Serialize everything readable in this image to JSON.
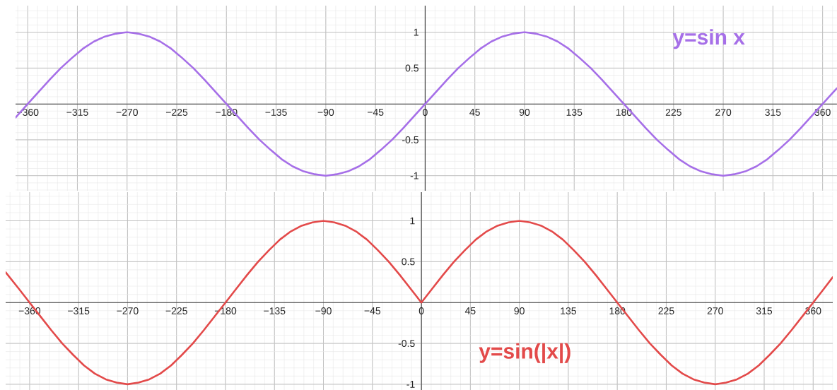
{
  "chart_data": [
    {
      "type": "line",
      "series": [
        {
          "name": "y=sin x",
          "color": "#a66fe8",
          "x": [
            -371,
            -360,
            -350,
            -340,
            -330,
            -320,
            -310,
            -300,
            -290,
            -280,
            -270,
            -260,
            -250,
            -240,
            -230,
            -220,
            -210,
            -200,
            -190,
            -180,
            -170,
            -160,
            -150,
            -140,
            -130,
            -120,
            -110,
            -100,
            -90,
            -80,
            -70,
            -60,
            -50,
            -40,
            -30,
            -20,
            -10,
            0,
            10,
            20,
            30,
            40,
            50,
            60,
            70,
            80,
            90,
            100,
            110,
            120,
            130,
            140,
            150,
            160,
            170,
            180,
            190,
            200,
            210,
            220,
            230,
            240,
            250,
            260,
            270,
            280,
            290,
            300,
            310,
            320,
            330,
            340,
            350,
            360,
            370,
            373
          ],
          "values": [
            -0.19,
            0,
            0.17,
            0.34,
            0.5,
            0.64,
            0.77,
            0.87,
            0.94,
            0.98,
            1,
            0.98,
            0.94,
            0.87,
            0.77,
            0.64,
            0.5,
            0.34,
            0.17,
            0,
            -0.17,
            -0.34,
            -0.5,
            -0.64,
            -0.77,
            -0.87,
            -0.94,
            -0.98,
            -1,
            -0.98,
            -0.94,
            -0.87,
            -0.77,
            -0.64,
            -0.5,
            -0.34,
            -0.17,
            0,
            0.17,
            0.34,
            0.5,
            0.64,
            0.77,
            0.87,
            0.94,
            0.98,
            1,
            0.98,
            0.94,
            0.87,
            0.77,
            0.64,
            0.5,
            0.34,
            0.17,
            0,
            -0.17,
            -0.34,
            -0.5,
            -0.64,
            -0.77,
            -0.87,
            -0.94,
            -0.98,
            -1,
            -0.98,
            -0.94,
            -0.87,
            -0.77,
            -0.64,
            -0.5,
            -0.34,
            -0.17,
            0,
            0.17,
            0.22
          ]
        }
      ],
      "xlim": [
        -371,
        373
      ],
      "ylim": [
        -1.21,
        1.37
      ],
      "xticks": [
        {
          "value": -360,
          "label": "−360"
        },
        {
          "value": -315,
          "label": "−315"
        },
        {
          "value": -270,
          "label": "−270"
        },
        {
          "value": -225,
          "label": "−225"
        },
        {
          "value": -180,
          "label": "−180"
        },
        {
          "value": -135,
          "label": "−135"
        },
        {
          "value": -90,
          "label": "−90"
        },
        {
          "value": -45,
          "label": "−45"
        },
        0,
        45,
        90,
        135,
        180,
        225,
        270,
        315,
        360
      ],
      "yticks": [
        -1,
        -0.5,
        0.5,
        1
      ],
      "grid": true
    },
    {
      "type": "line",
      "series": [
        {
          "name": "y=sin(|x|)",
          "color": "#e34a4a",
          "x": [
            -382,
            -370,
            -360,
            -350,
            -340,
            -330,
            -320,
            -310,
            -300,
            -290,
            -280,
            -270,
            -260,
            -250,
            -240,
            -230,
            -220,
            -210,
            -200,
            -190,
            -180,
            -170,
            -160,
            -150,
            -140,
            -130,
            -120,
            -110,
            -100,
            -90,
            -80,
            -70,
            -60,
            -50,
            -40,
            -30,
            -20,
            -10,
            0,
            10,
            20,
            30,
            40,
            50,
            60,
            70,
            80,
            90,
            100,
            110,
            120,
            130,
            140,
            150,
            160,
            170,
            180,
            190,
            200,
            210,
            220,
            230,
            240,
            250,
            260,
            270,
            280,
            290,
            300,
            310,
            320,
            330,
            340,
            350,
            360,
            370,
            378
          ],
          "values": [
            0.37,
            0.17,
            0,
            -0.17,
            -0.34,
            -0.5,
            -0.64,
            -0.77,
            -0.87,
            -0.94,
            -0.98,
            -1,
            -0.98,
            -0.94,
            -0.87,
            -0.77,
            -0.64,
            -0.5,
            -0.34,
            -0.17,
            0,
            0.17,
            0.34,
            0.5,
            0.64,
            0.77,
            0.87,
            0.94,
            0.98,
            1,
            0.98,
            0.94,
            0.87,
            0.77,
            0.64,
            0.5,
            0.34,
            0.17,
            0,
            0.17,
            0.34,
            0.5,
            0.64,
            0.77,
            0.87,
            0.94,
            0.98,
            1,
            0.98,
            0.94,
            0.87,
            0.77,
            0.64,
            0.5,
            0.34,
            0.17,
            0,
            -0.17,
            -0.34,
            -0.5,
            -0.64,
            -0.77,
            -0.87,
            -0.94,
            -0.98,
            -1,
            -0.98,
            -0.94,
            -0.87,
            -0.77,
            -0.64,
            -0.5,
            -0.34,
            -0.17,
            0,
            0.17,
            0.31
          ]
        }
      ],
      "xlim": [
        -382,
        378
      ],
      "ylim": [
        -1.07,
        1.35
      ],
      "xticks": [
        {
          "value": -360,
          "label": "−360"
        },
        {
          "value": -315,
          "label": "−315"
        },
        {
          "value": -270,
          "label": "−270"
        },
        {
          "value": -225,
          "label": "−225"
        },
        {
          "value": -180,
          "label": "−180"
        },
        {
          "value": -135,
          "label": "−135"
        },
        {
          "value": -90,
          "label": "−90"
        },
        {
          "value": -45,
          "label": "−45"
        },
        0,
        45,
        90,
        135,
        180,
        225,
        270,
        315,
        360
      ],
      "yticks": [
        -1,
        -0.5,
        0.5,
        1
      ],
      "grid": true
    }
  ]
}
